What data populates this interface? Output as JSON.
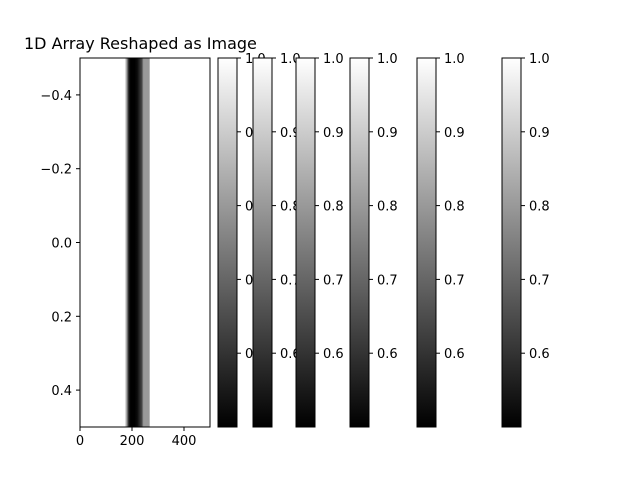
{
  "chart_data": {
    "type": "heatmap",
    "title": "1D Array Reshaped as Image",
    "xlabel": "",
    "ylabel": "",
    "xlim": [
      0,
      500
    ],
    "ylim": [
      0.5,
      -0.5
    ],
    "x_ticks": [
      0,
      200,
      400
    ],
    "x_tick_labels": [
      "0",
      "200",
      "400"
    ],
    "y_ticks": [
      -0.4,
      -0.2,
      0.0,
      0.2,
      0.4
    ],
    "y_tick_labels": [
      "−0.4",
      "−0.2",
      "0.0",
      "0.2",
      "0.4"
    ],
    "colormap": "gray",
    "value_range": [
      0.5,
      1.0
    ],
    "pixel_profile": [
      {
        "x": 0,
        "value": 1.0
      },
      {
        "x": 172,
        "value": 1.0
      },
      {
        "x": 180,
        "value": 0.8
      },
      {
        "x": 188,
        "value": 0.55
      },
      {
        "x": 195,
        "value": 0.5
      },
      {
        "x": 210,
        "value": 0.5
      },
      {
        "x": 220,
        "value": 0.52
      },
      {
        "x": 232,
        "value": 0.6
      },
      {
        "x": 238,
        "value": 0.64
      },
      {
        "x": 244,
        "value": 0.8
      },
      {
        "x": 266,
        "value": 0.8
      },
      {
        "x": 270,
        "value": 1.0
      },
      {
        "x": 500,
        "value": 1.0
      }
    ],
    "colorbars": [
      {
        "range": [
          0.5,
          1.0
        ],
        "ticks": [
          0.6,
          0.7,
          0.8,
          0.9,
          1.0
        ],
        "tick_labels": [
          "0.6",
          "0.7",
          "0.8",
          "0.9",
          "1.0"
        ]
      },
      {
        "range": [
          0.5,
          1.0
        ],
        "ticks": [
          0.6,
          0.7,
          0.8,
          0.9,
          1.0
        ],
        "tick_labels": [
          "0.6",
          "0.7",
          "0.8",
          "0.9",
          "1.0"
        ]
      },
      {
        "range": [
          0.5,
          1.0
        ],
        "ticks": [
          0.6,
          0.7,
          0.8,
          0.9,
          1.0
        ],
        "tick_labels": [
          "0.6",
          "0.7",
          "0.8",
          "0.9",
          "1.0"
        ]
      },
      {
        "range": [
          0.5,
          1.0
        ],
        "ticks": [
          0.6,
          0.7,
          0.8,
          0.9,
          1.0
        ],
        "tick_labels": [
          "0.6",
          "0.7",
          "0.8",
          "0.9",
          "1.0"
        ]
      },
      {
        "range": [
          0.5,
          1.0
        ],
        "ticks": [
          0.6,
          0.7,
          0.8,
          0.9,
          1.0
        ],
        "tick_labels": [
          "0.6",
          "0.7",
          "0.8",
          "0.9",
          "1.0"
        ]
      },
      {
        "range": [
          0.5,
          1.0
        ],
        "ticks": [
          0.6,
          0.7,
          0.8,
          0.9,
          1.0
        ],
        "tick_labels": [
          "0.6",
          "0.7",
          "0.8",
          "0.9",
          "1.0"
        ]
      }
    ]
  }
}
